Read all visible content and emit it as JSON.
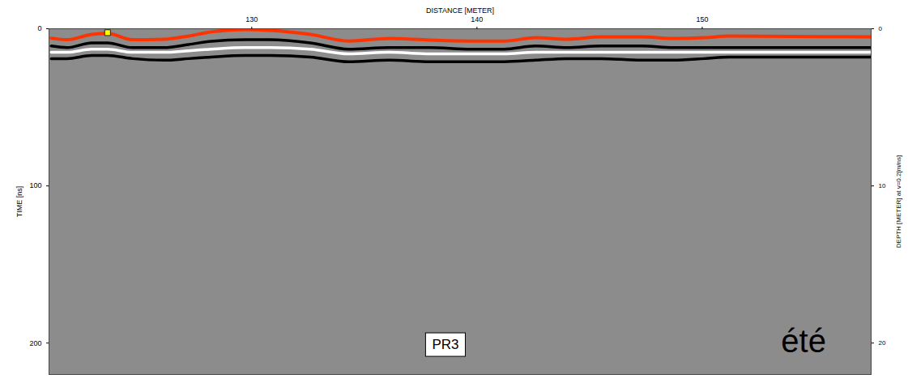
{
  "chart_data": {
    "type": "line",
    "xlabel": "DISTANCE [METER]",
    "ylabel": "TIME [ns]",
    "y2label": "DEPTH [METER] at v=0.2[m/ns]",
    "xlim": [
      121,
      157.5
    ],
    "xticks": [
      130,
      140,
      150
    ],
    "ylim": [
      0,
      220
    ],
    "yticks": [
      0,
      100,
      200
    ],
    "y2lim": [
      0,
      22
    ],
    "y2ticks": [
      0,
      10,
      20
    ],
    "grid": false,
    "x": [
      121.1,
      121.8,
      122.9,
      123.6,
      124.7,
      126.1,
      127.2,
      128.2,
      129.7,
      130.8,
      132.6,
      134.3,
      136.1,
      137.9,
      139.7,
      141.2,
      142.6,
      144.0,
      145.5,
      147.3,
      148.7,
      150.1,
      151.2,
      157.5
    ],
    "series": [
      {
        "color": "#000000",
        "values": [
          11,
          12,
          9,
          9,
          12,
          12,
          10,
          8,
          7,
          7,
          9,
          13,
          12,
          12,
          13,
          13,
          11,
          12,
          11,
          11,
          12,
          12,
          12,
          12
        ]
      },
      {
        "color": "#ffffff",
        "values": [
          15,
          15,
          13,
          13,
          15,
          15,
          14,
          13,
          12,
          12,
          13,
          16,
          15,
          16,
          16,
          16,
          15,
          15,
          15,
          15,
          15,
          15,
          15,
          15
        ]
      },
      {
        "color": "#000000",
        "values": [
          19,
          19,
          17,
          17,
          19,
          20,
          19,
          18,
          17,
          17,
          18,
          21,
          20,
          21,
          21,
          21,
          20,
          19,
          19,
          20,
          20,
          19,
          18,
          18
        ]
      },
      {
        "color": "#ff3300",
        "values": [
          6,
          7,
          3.6,
          3,
          7,
          6.7,
          4.6,
          2,
          0.5,
          1,
          3.6,
          7.8,
          6.2,
          7.2,
          7.8,
          7.8,
          5.7,
          6.7,
          5.2,
          5.2,
          6.2,
          5.7,
          4.7,
          5.2
        ]
      },
      {
        "type": "scatter",
        "marker": "square",
        "color": "#ffff00",
        "values": [
          null,
          null,
          null,
          2.5,
          null,
          null,
          null,
          null,
          null,
          null,
          null,
          null,
          null,
          null,
          null,
          null,
          null,
          null,
          null,
          null,
          null,
          null,
          null,
          null
        ]
      }
    ],
    "annotations": [
      {
        "text": "PR3",
        "x": 138.6,
        "y": 201
      },
      {
        "text": "été",
        "x": 154.5,
        "y": 199
      }
    ]
  }
}
